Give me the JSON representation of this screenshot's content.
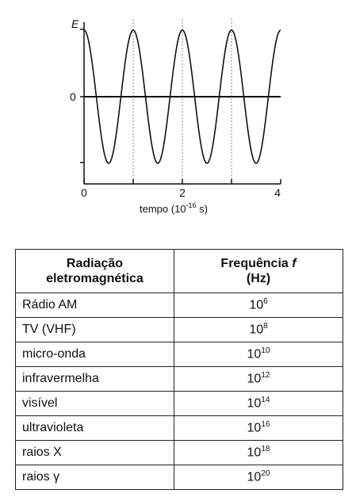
{
  "graph": {
    "y_axis_label": "E",
    "y_zero_label": "0",
    "x_ticks": [
      "0",
      "2",
      "4"
    ],
    "x_axis_label": "tempo (10",
    "x_axis_label_exp": "-16",
    "x_axis_label_unit": " s)"
  },
  "chart_data": {
    "type": "line",
    "series": [
      {
        "function": "E = cos(2*pi*t/1)",
        "period": 1,
        "x_range": [
          0,
          4
        ]
      }
    ],
    "xlim": [
      0,
      4
    ],
    "xlabel": "tempo (10^-16 s)",
    "ylabel": "E",
    "x_tick_labels": [
      "0",
      "2",
      "4"
    ],
    "y_tick_labels": [
      "0"
    ],
    "dotted_gridlines_x": [
      1,
      2,
      3
    ]
  },
  "table": {
    "header_col1_line1": "Radiação",
    "header_col1_line2": "eletromagnética",
    "header_col2_line1": "Frequência ",
    "header_col2_italic": "f",
    "header_col2_line2": "(Hz)",
    "rows": [
      {
        "name": "Rádio AM",
        "base": "10",
        "exp": "6"
      },
      {
        "name": "TV (VHF)",
        "base": "10",
        "exp": "8"
      },
      {
        "name": "micro-onda",
        "base": "10",
        "exp": "10"
      },
      {
        "name": "infravermelha",
        "base": "10",
        "exp": "12"
      },
      {
        "name": "visível",
        "base": "10",
        "exp": "14"
      },
      {
        "name": "ultravioleta",
        "base": "10",
        "exp": "16"
      },
      {
        "name": "raios X",
        "base": "10",
        "exp": "18"
      },
      {
        "name": "raios γ",
        "base": "10",
        "exp": "20"
      }
    ]
  }
}
